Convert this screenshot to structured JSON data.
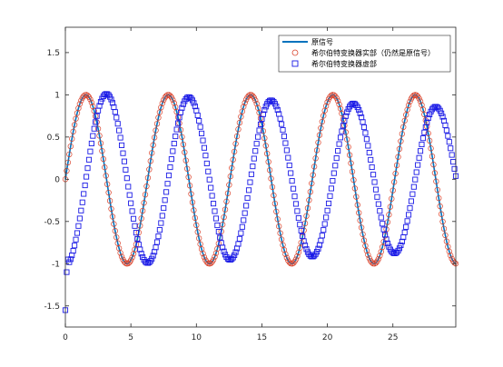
{
  "chart_data": {
    "type": "line",
    "title": "",
    "xlabel": "",
    "ylabel": "",
    "xlim": [
      0,
      29.8
    ],
    "ylim": [
      -1.75,
      1.8
    ],
    "xticks": [
      0,
      5,
      10,
      15,
      20,
      25
    ],
    "yticks": [
      -1.5,
      -1,
      -0.5,
      0,
      0.5,
      1,
      1.5
    ],
    "xtick_labels": [
      "0",
      "5",
      "10",
      "15",
      "20",
      "25"
    ],
    "ytick_labels": [
      "-1.5",
      "-1",
      "-0.5",
      "0",
      "0.5",
      "1",
      "1.5"
    ],
    "grid": false,
    "legend_position": "top-right",
    "sample_step": 0.1,
    "x_range": [
      0,
      29.8
    ],
    "series": [
      {
        "name": "原信号",
        "style": "line",
        "color": "#0072BD",
        "function": "sin(x)"
      },
      {
        "name": "希尔伯特变换器实部（仍然是原信号）",
        "style": "circle-markers",
        "color": "#D9412A",
        "function": "sin(x)"
      },
      {
        "name": "希尔伯特变换器虚部",
        "style": "square-markers",
        "color": "#1A1AE6",
        "function": "-cos(x), amplitude tapering to about 0.85 at the right end",
        "start_values": [
          -1.55,
          -1.1,
          -0.95
        ]
      }
    ]
  }
}
